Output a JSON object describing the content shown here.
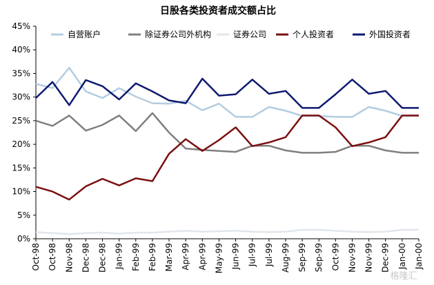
{
  "chart_data": {
    "type": "line",
    "title": "日股各类投资者成交额占比",
    "xlabel": "",
    "ylabel": "",
    "ylim": [
      0,
      45
    ],
    "y_ticks": [
      "0%",
      "5%",
      "10%",
      "15%",
      "20%",
      "25%",
      "30%",
      "35%",
      "40%",
      "45%"
    ],
    "legend_position": "top",
    "grid": false,
    "categories": [
      "Oct-98",
      "Oct-98",
      "Nov-98",
      "Dec-98",
      "Dec-98",
      "Jan-99",
      "Feb-99",
      "Feb-99",
      "Mar-99",
      "Apr-99",
      "Apr-99",
      "May-99",
      "Jun-99",
      "Jul-99",
      "Jul-99",
      "Aug-99",
      "Sep-99",
      "Sep-99",
      "Oct-99",
      "Nov-99",
      "Nov-99",
      "Dec-99",
      "Jan-00",
      "Jan-00"
    ],
    "series": [
      {
        "name": "自营账户",
        "color": "#b3cde0",
        "values": [
          32.8,
          31.9,
          36.2,
          31.2,
          29.8,
          31.9,
          30.1,
          28.7,
          28.6,
          29.2,
          27.2,
          28.6,
          25.8,
          25.8,
          27.9,
          27.1,
          26.0,
          26.0,
          25.8,
          25.8,
          27.9,
          27.1,
          26.0,
          26.0
        ]
      },
      {
        "name": "除证券公司外机构",
        "color": "#7f7f7f",
        "values": [
          25.0,
          23.9,
          26.1,
          22.9,
          24.1,
          26.1,
          22.8,
          26.6,
          22.5,
          19.1,
          18.8,
          18.6,
          18.4,
          19.7,
          19.7,
          18.7,
          18.2,
          18.2,
          18.4,
          19.7,
          19.7,
          18.7,
          18.2,
          18.2
        ]
      },
      {
        "name": "证券公司",
        "color": "#e1e6ec",
        "values": [
          1.4,
          1.2,
          1.0,
          1.2,
          1.3,
          1.1,
          1.3,
          1.3,
          1.5,
          1.7,
          1.5,
          1.6,
          1.7,
          1.5,
          1.4,
          1.5,
          1.9,
          1.9,
          1.7,
          1.5,
          1.4,
          1.5,
          1.9,
          1.9
        ]
      },
      {
        "name": "个人投资者",
        "color": "#7b0f0f",
        "values": [
          11.0,
          10.0,
          8.3,
          11.1,
          12.7,
          11.3,
          12.8,
          12.2,
          18.0,
          21.1,
          18.6,
          20.9,
          23.6,
          19.6,
          20.4,
          21.5,
          26.1,
          26.1,
          23.6,
          19.6,
          20.4,
          21.5,
          26.1,
          26.1
        ]
      },
      {
        "name": "外国投资者",
        "color": "#0d1970",
        "values": [
          29.8,
          33.2,
          28.3,
          33.6,
          32.3,
          29.5,
          32.9,
          31.2,
          29.3,
          28.7,
          33.9,
          30.3,
          30.6,
          33.7,
          30.7,
          31.3,
          27.7,
          27.7,
          30.6,
          33.7,
          30.7,
          31.3,
          27.7,
          27.7
        ]
      }
    ]
  },
  "watermark": "格隆汇"
}
